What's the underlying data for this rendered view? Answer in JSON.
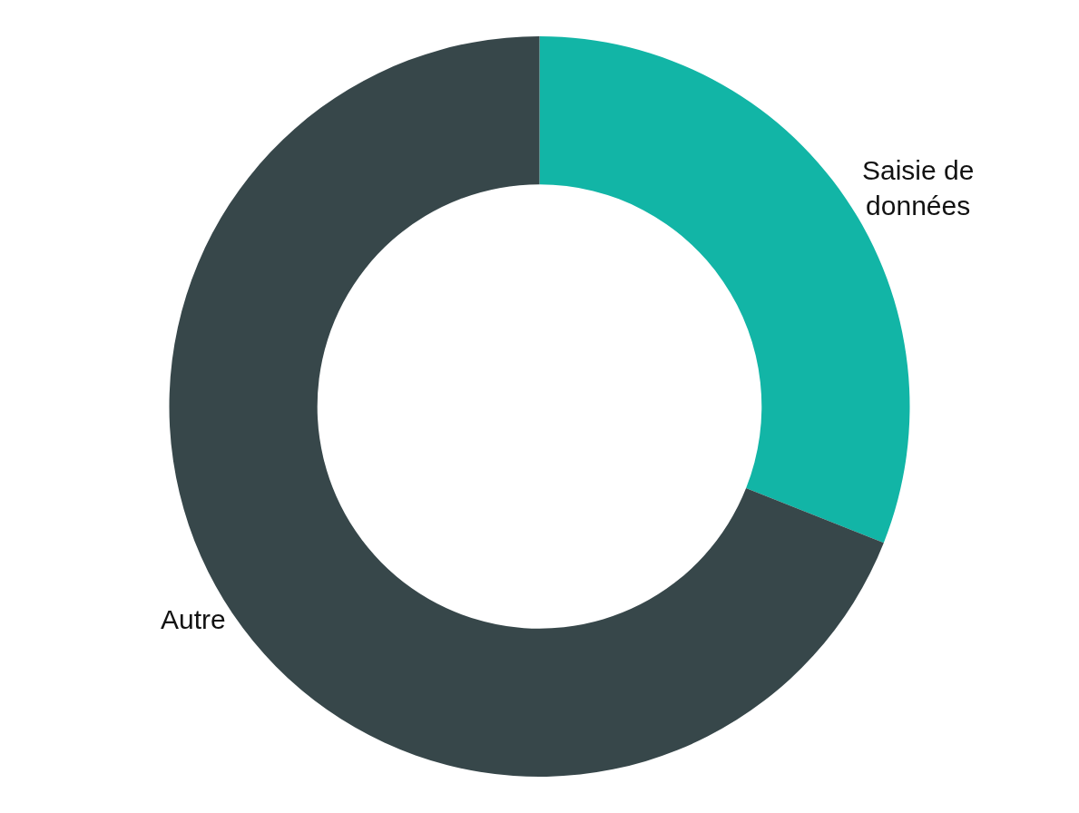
{
  "chart_data": {
    "type": "donut",
    "categories": [
      "Saisie de\ndonnées",
      "Autre"
    ],
    "values": [
      31,
      69
    ],
    "colors": [
      "#12b5a6",
      "#37474a"
    ],
    "legend": false
  }
}
